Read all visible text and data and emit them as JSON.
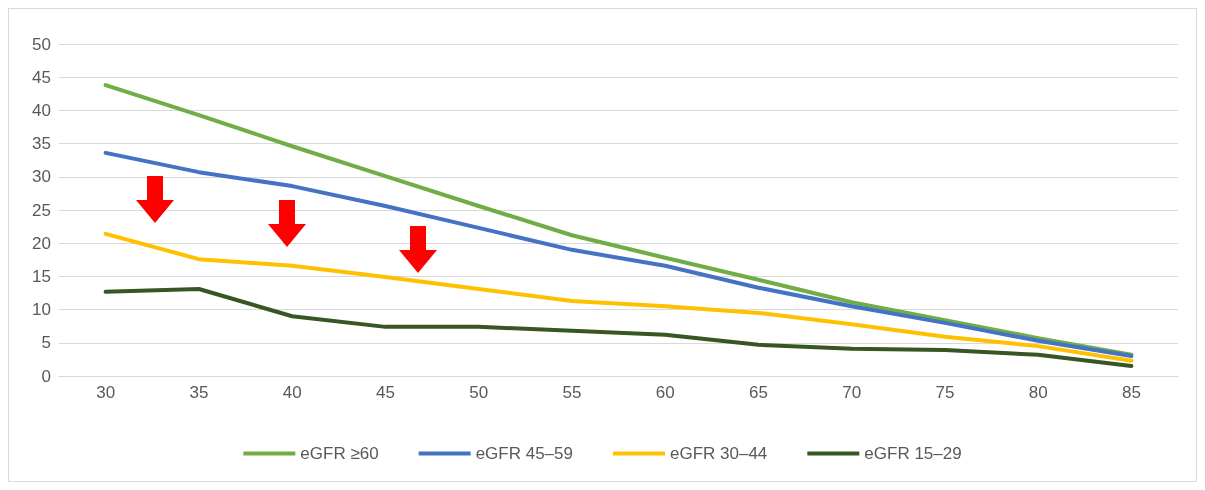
{
  "chart_data": {
    "type": "line",
    "categories": [
      "30",
      "35",
      "40",
      "45",
      "50",
      "55",
      "60",
      "65",
      "70",
      "75",
      "80",
      "85"
    ],
    "ylim": [
      0,
      50
    ],
    "yticks": [
      0,
      5,
      10,
      15,
      20,
      25,
      30,
      35,
      40,
      45,
      50
    ],
    "grid": "y",
    "legend": "bottom",
    "marker": "none",
    "line_style": "solid",
    "series": [
      {
        "name": "eGFR ≥60",
        "color": "#70ad47",
        "values": [
          43.8,
          39.3,
          34.6,
          30.1,
          25.6,
          21.2,
          17.8,
          14.5,
          11.1,
          8.4,
          5.7,
          3.2
        ]
      },
      {
        "name": "eGFR 45–59",
        "color": "#4472c4",
        "values": [
          33.6,
          30.7,
          28.6,
          25.6,
          22.3,
          19.0,
          16.6,
          13.3,
          10.5,
          8.0,
          5.3,
          3.0
        ]
      },
      {
        "name": "eGFR 30–44",
        "color": "#ffc000",
        "values": [
          21.4,
          17.6,
          16.6,
          14.9,
          13.1,
          11.3,
          10.5,
          9.5,
          7.8,
          5.9,
          4.5,
          2.3
        ]
      },
      {
        "name": "eGFR 15–29",
        "color": "#375623",
        "values": [
          12.7,
          13.1,
          9.0,
          7.4,
          7.4,
          6.8,
          6.2,
          4.7,
          4.1,
          3.9,
          3.2,
          1.5
        ]
      }
    ]
  }
}
